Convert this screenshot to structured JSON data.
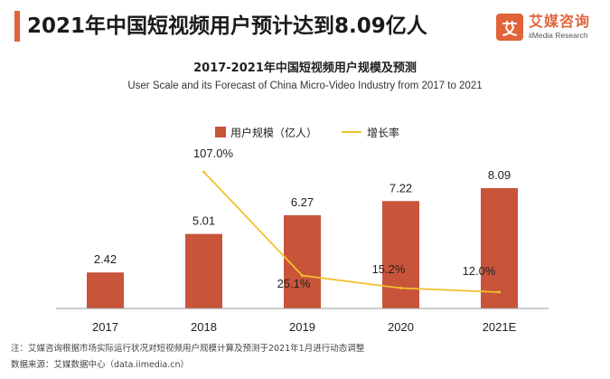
{
  "headline": "2021年中国短视频用户预计达到8.09亿人",
  "brand": {
    "logo_glyph": "艾",
    "name": "艾媒咨询",
    "sub": "iiMedia Research"
  },
  "colors": {
    "accent": "#e0643a",
    "bar": "#c8543a",
    "line": "#f2c12e",
    "axis": "#999999"
  },
  "chart_data": {
    "type": "bar",
    "title": "2017-2021年中国短视频用户规模及预测",
    "subtitle": "User Scale and its Forecast of China Micro-Video Industry from 2017 to 2021",
    "categories": [
      "2017",
      "2018",
      "2019",
      "2020",
      "2021E"
    ],
    "series": [
      {
        "name": "用户规模（亿人）",
        "kind": "bar",
        "values": [
          2.42,
          5.01,
          6.27,
          7.22,
          8.09
        ],
        "labels": [
          "2.42",
          "5.01",
          "6.27",
          "7.22",
          "8.09"
        ]
      },
      {
        "name": "增长率",
        "kind": "line",
        "values": [
          null,
          107.0,
          25.1,
          15.2,
          12.0
        ],
        "labels": [
          "",
          "107.0%",
          "25.1%",
          "15.2%",
          "12.0%"
        ]
      }
    ],
    "ylim": [
      0,
      10
    ],
    "ylim_secondary": [
      0,
      140
    ],
    "grid": false,
    "legend": "top-center"
  },
  "footnotes": [
    "注：艾媒咨询根据市场实际运行状况对短视频用户规模计算及预测于2021年1月进行动态调整",
    "数据来源：艾媒数据中心（data.iimedia.cn）"
  ]
}
